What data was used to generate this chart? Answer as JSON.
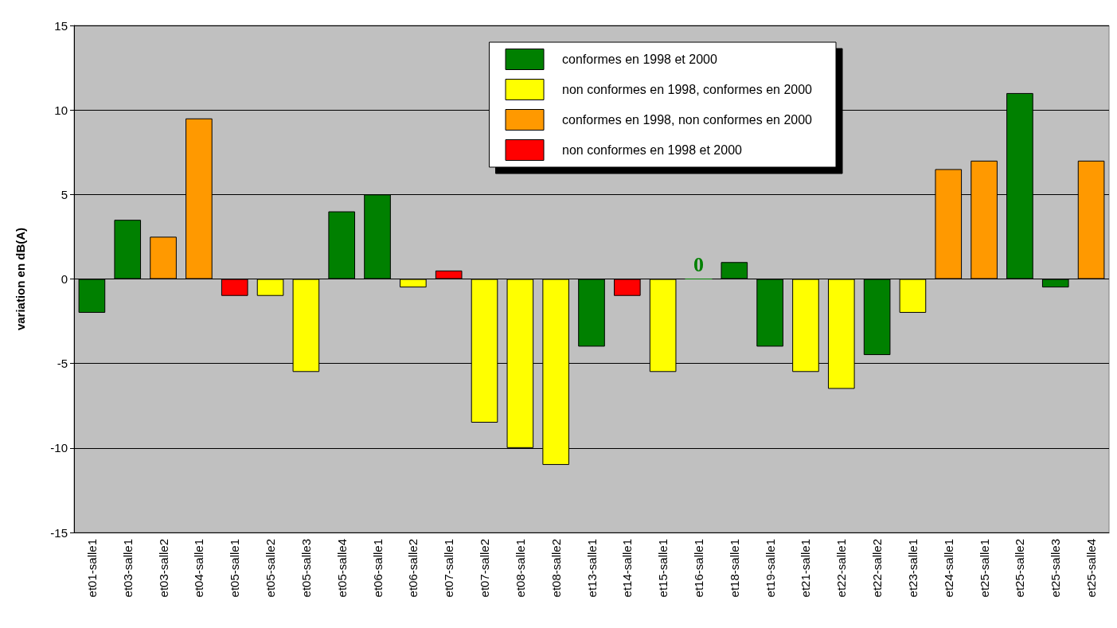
{
  "chart_data": {
    "type": "bar",
    "ylabel": "variation en dB(A)",
    "categories": [
      "et01-salle1",
      "et03-salle1",
      "et03-salle2",
      "et04-salle1",
      "et05-salle1",
      "et05-salle2",
      "et05-salle3",
      "et05-salle4",
      "et06-salle1",
      "et06-salle2",
      "et07-salle1",
      "et07-salle2",
      "et08-salle1",
      "et08-salle2",
      "et13-salle1",
      "et14-salle1",
      "et15-salle1",
      "et16-salle1",
      "et18-salle1",
      "et19-salle1",
      "et21-salle1",
      "et22-salle1",
      "et22-salle2",
      "et23-salle1",
      "et24-salle1",
      "et25-salle1",
      "et25-salle2",
      "et25-salle3",
      "et25-salle4"
    ],
    "series": [
      {
        "name": "conformes en 1998 et 2000",
        "color": "#008000",
        "values": [
          -2,
          3.5,
          null,
          null,
          null,
          null,
          null,
          4,
          5,
          null,
          null,
          null,
          null,
          null,
          -4,
          null,
          null,
          0,
          1,
          -4,
          null,
          null,
          -4.5,
          null,
          null,
          null,
          11,
          -0.5,
          null
        ],
        "value_labels": [
          null,
          null,
          null,
          null,
          null,
          null,
          null,
          null,
          null,
          null,
          null,
          null,
          null,
          null,
          null,
          null,
          null,
          "0",
          null,
          null,
          null,
          null,
          null,
          null,
          null,
          null,
          null,
          null,
          null
        ]
      },
      {
        "name": "non conformes en 1998, conformes en 2000",
        "color": "#ffff00",
        "values": [
          null,
          null,
          null,
          null,
          null,
          -1,
          -5.5,
          null,
          null,
          -0.5,
          null,
          -8.5,
          -10,
          -11,
          null,
          null,
          -5.5,
          null,
          null,
          null,
          -5.5,
          -6.5,
          null,
          -2,
          null,
          null,
          null,
          null,
          null
        ]
      },
      {
        "name": "conformes en 1998, non conformes en 2000",
        "color": "#ff9900",
        "values": [
          null,
          null,
          2.5,
          9.5,
          null,
          null,
          null,
          null,
          null,
          null,
          null,
          null,
          null,
          null,
          null,
          null,
          null,
          null,
          null,
          null,
          null,
          null,
          null,
          null,
          6.5,
          7,
          null,
          null,
          7
        ]
      },
      {
        "name": "non conformes en 1998 et 2000",
        "color": "#ff0000",
        "values": [
          null,
          null,
          null,
          null,
          -1,
          null,
          null,
          null,
          null,
          null,
          0.5,
          null,
          null,
          null,
          null,
          -1,
          null,
          null,
          null,
          null,
          null,
          null,
          null,
          null,
          null,
          null,
          null,
          null,
          null
        ]
      }
    ],
    "ylim": [
      -15,
      15
    ],
    "yticks": [
      -15,
      -10,
      -5,
      0,
      5,
      10,
      15
    ],
    "grid": "y",
    "legend": "top right"
  }
}
